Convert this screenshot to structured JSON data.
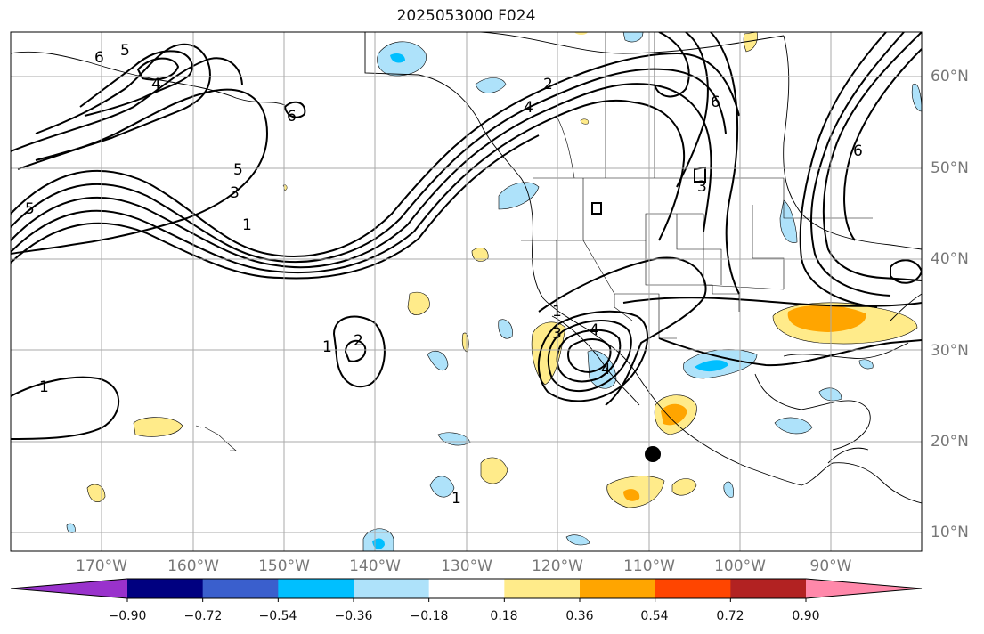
{
  "title": "2025053000 F024",
  "lat_labels": [
    "60°N",
    "50°N",
    "40°N",
    "30°N",
    "20°N",
    "10°N"
  ],
  "lon_labels": [
    "170°W",
    "160°W",
    "150°W",
    "140°W",
    "130°W",
    "120°W",
    "110°W",
    "100°W",
    "90°W"
  ],
  "colorbar": {
    "ticks": [
      "−0.90",
      "−0.72",
      "−0.54",
      "−0.36",
      "−0.18",
      "0.18",
      "0.36",
      "0.54",
      "0.72",
      "0.90"
    ],
    "colors": [
      "#9932cc",
      "#000080",
      "#3a5fcd",
      "#00bfff",
      "#aee2fa",
      "#ffffff",
      "#ffeb8a",
      "#ffa500",
      "#ff4500",
      "#b22222",
      "#ff88aa"
    ]
  },
  "contour_labels": [
    "6",
    "5",
    "4",
    "6",
    "3",
    "1",
    "5",
    "2",
    "1",
    "1",
    "2",
    "4",
    "3",
    "1",
    "6",
    "4",
    "3",
    "5",
    "4",
    "1",
    "6"
  ],
  "fill_colors": {
    "light_blue": "#aee2fa",
    "mid_blue": "#00bfff",
    "yellow": "#ffeb8a",
    "orange": "#ffa500"
  }
}
